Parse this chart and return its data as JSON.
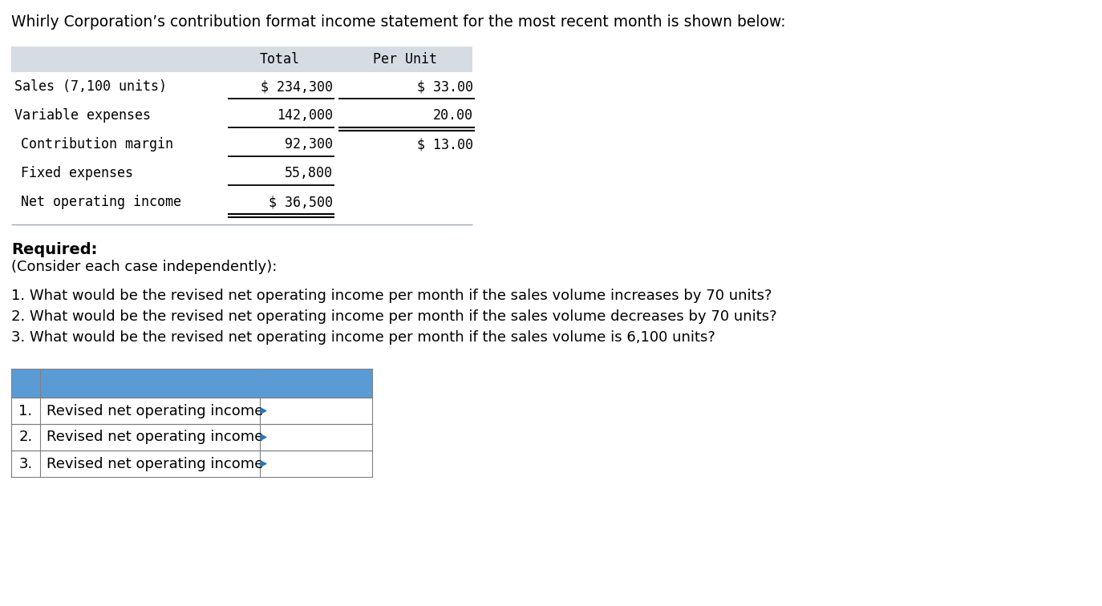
{
  "title": "Whirly Corporation’s contribution format income statement for the most recent month is shown below:",
  "bg_color": "#ffffff",
  "table1": {
    "header_bg": "#d6dce4",
    "col_headers": [
      "",
      "Total",
      "Per Unit"
    ],
    "rows": [
      [
        "Sales (7,100 units)",
        "$ 234,300",
        "$ 33.00"
      ],
      [
        "Variable expenses",
        "142,000",
        "20.00"
      ],
      [
        "Contribution margin",
        "92,300",
        "$ 13.00"
      ],
      [
        "Fixed expenses",
        "55,800",
        ""
      ],
      [
        "Net operating income",
        "$ 36,500",
        ""
      ]
    ]
  },
  "required_text": "Required:",
  "consider_text": "(Consider each case independently):",
  "questions": [
    "1. What would be the revised net operating income per month if the sales volume increases by 70 units?",
    "2. What would be the revised net operating income per month if the sales volume decreases by 70 units?",
    "3. What would be the revised net operating income per month if the sales volume is 6,100 units?"
  ],
  "table2": {
    "header_bg": "#5b9bd5",
    "rows": [
      [
        "1.",
        "Revised net operating income"
      ],
      [
        "2.",
        "Revised net operating income"
      ],
      [
        "3.",
        "Revised net operating income"
      ]
    ]
  },
  "mono_font": "DejaVu Sans Mono",
  "sans_font": "DejaVu Sans",
  "title_fontsize": 13.5,
  "body_fontsize": 13,
  "table1_fontsize": 12,
  "table2_fontsize": 13,
  "required_fontsize": 14
}
